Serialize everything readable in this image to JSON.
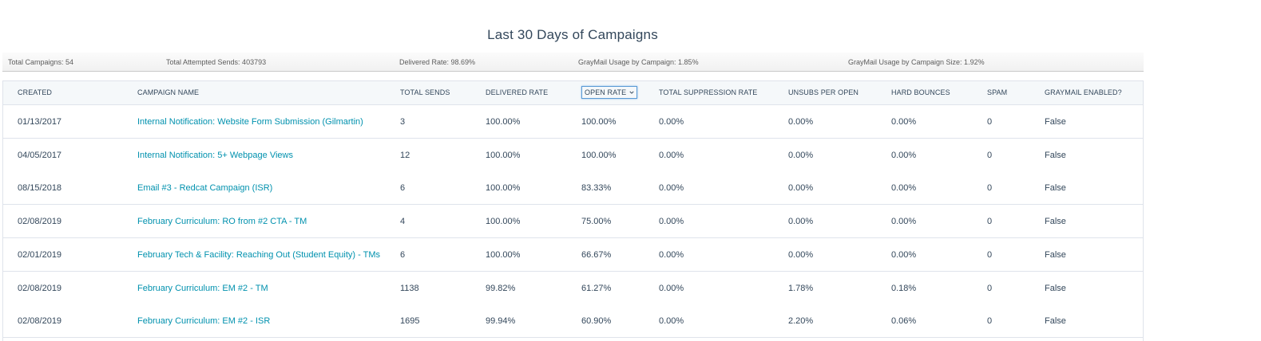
{
  "title": "Last 30 Days of Campaigns",
  "summary": {
    "total_campaigns": "Total Campaigns: 54",
    "total_attempted_sends": "Total Attempted Sends: 403793",
    "delivered_rate": "Delivered Rate: 98.69%",
    "graymail_by_campaign": "GrayMail Usage by Campaign: 1.85%",
    "graymail_by_size": "GrayMail Usage by Campaign Size: 1.92%"
  },
  "columns": [
    "CREATED",
    "CAMPAIGN NAME",
    "TOTAL SENDS",
    "DELIVERED RATE",
    "OPEN RATE",
    "TOTAL SUPPRESSION RATE",
    "UNSUBS PER OPEN",
    "HARD BOUNCES",
    "SPAM",
    "GRAYMAIL ENABLED?"
  ],
  "sorted_column_icon": "chevron-down-icon",
  "accent_link_color": "#0091ae",
  "rows": [
    [
      "01/13/2017",
      "Internal Notification: Website Form Submission (Gilmartin)",
      "3",
      "100.00%",
      "100.00%",
      "0.00%",
      "0.00%",
      "0.00%",
      "0",
      "False"
    ],
    [
      "04/05/2017",
      "Internal Notification: 5+ Webpage Views",
      "12",
      "100.00%",
      "100.00%",
      "0.00%",
      "0.00%",
      "0.00%",
      "0",
      "False"
    ],
    [
      "08/15/2018",
      "Email #3 - Redcat Campaign (ISR)",
      "6",
      "100.00%",
      "83.33%",
      "0.00%",
      "0.00%",
      "0.00%",
      "0",
      "False"
    ],
    [
      "02/08/2019",
      "February Curriculum: RO from #2 CTA - TM",
      "4",
      "100.00%",
      "75.00%",
      "0.00%",
      "0.00%",
      "0.00%",
      "0",
      "False"
    ],
    [
      "02/01/2019",
      "February Tech & Facility: Reaching Out (Student Equity) - TMs",
      "6",
      "100.00%",
      "66.67%",
      "0.00%",
      "0.00%",
      "0.00%",
      "0",
      "False"
    ],
    [
      "02/08/2019",
      "February Curriculum: EM #2 - TM",
      "1138",
      "99.82%",
      "61.27%",
      "0.00%",
      "1.78%",
      "0.18%",
      "0",
      "False"
    ],
    [
      "02/08/2019",
      "February Curriculum: EM #2 - ISR",
      "1695",
      "99.94%",
      "60.90%",
      "0.00%",
      "2.20%",
      "0.06%",
      "0",
      "False"
    ]
  ]
}
